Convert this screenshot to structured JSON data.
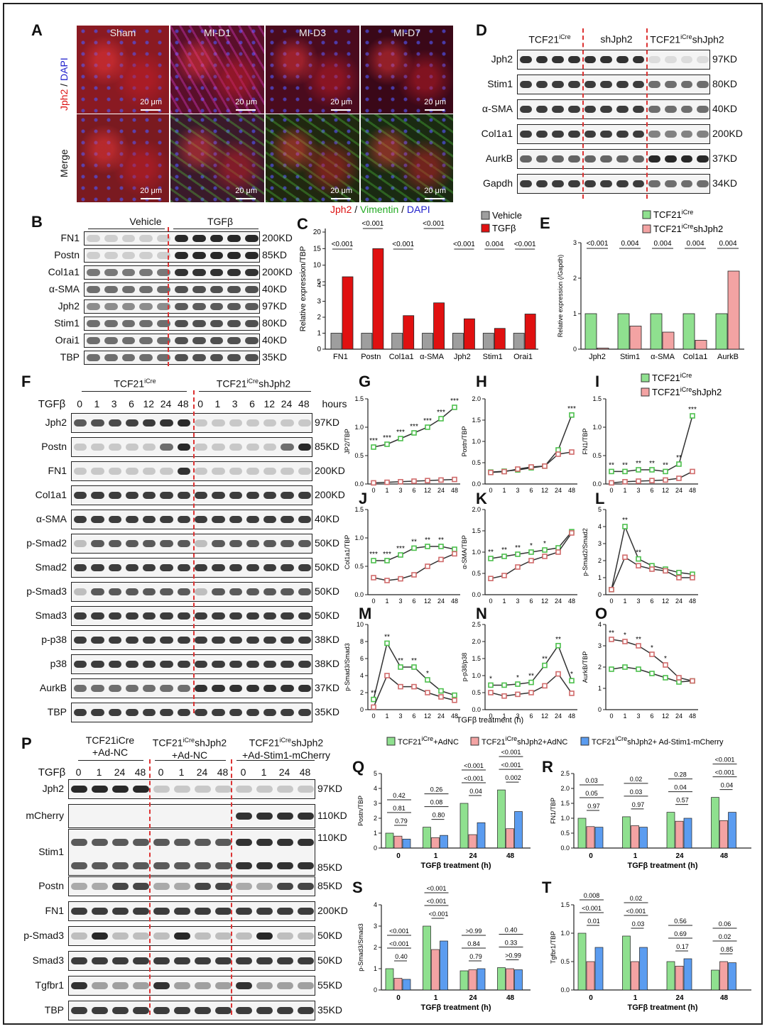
{
  "panels": {
    "A": "A",
    "B": "B",
    "C": "C",
    "D": "D",
    "E": "E",
    "F": "F",
    "G": "G",
    "H": "H",
    "I": "I",
    "J": "J",
    "K": "K",
    "L": "L",
    "M": "M",
    "N": "N",
    "O": "O",
    "P": "P",
    "Q": "Q",
    "R": "R",
    "S": "S",
    "T": "T"
  },
  "panelA": {
    "col_titles": [
      "Sham",
      "MI-D1",
      "MI-D3",
      "MI-D7"
    ],
    "scale": "20 μm",
    "row1_label_red": "Jph2",
    "row1_label_sep": " / ",
    "row1_label_blue": "DAPI",
    "row2_label": "Merge",
    "legend_red": "Jph2",
    "legend_green": "Vimentin",
    "legend_blue": "DAPI",
    "legend_sep": " / "
  },
  "panelB": {
    "group_left": "Vehicle",
    "group_right": "TGFβ",
    "rows": [
      {
        "name": "FN1",
        "kd": "200KD"
      },
      {
        "name": "Postn",
        "kd": "85KD"
      },
      {
        "name": "Col1a1",
        "kd": "200KD"
      },
      {
        "name": "α-SMA",
        "kd": "40KD"
      },
      {
        "name": "Jph2",
        "kd": "97KD"
      },
      {
        "name": "Stim1",
        "kd": "80KD"
      },
      {
        "name": "Orai1",
        "kd": "40KD"
      },
      {
        "name": "TBP",
        "kd": "35KD"
      }
    ]
  },
  "panelD": {
    "groups": [
      "TCF21",
      "shJph2",
      "TCF21"
    ],
    "sups": [
      "iCre",
      "",
      "iCre"
    ],
    "tail": [
      "",
      "",
      "shJph2"
    ],
    "rows": [
      {
        "name": "Jph2",
        "kd": "97KD"
      },
      {
        "name": "Stim1",
        "kd": "80KD"
      },
      {
        "name": "α-SMA",
        "kd": "40KD"
      },
      {
        "name": "Col1a1",
        "kd": "200KD"
      },
      {
        "name": "AurkB",
        "kd": "37KD"
      },
      {
        "name": "Gapdh",
        "kd": "34KD"
      }
    ]
  },
  "panelF": {
    "group_left": "TCF21",
    "group_left_sup": "iCre",
    "group_right": "TCF21",
    "group_right_sup": "iCre",
    "group_right_tail": "shJph2",
    "tgfb_label": "TGFβ",
    "times": [
      "0",
      "1",
      "3",
      "6",
      "12",
      "24",
      "48"
    ],
    "hours": "hours",
    "rows": [
      {
        "name": "Jph2",
        "kd": "97KD"
      },
      {
        "name": "Postn",
        "kd": "85KD"
      },
      {
        "name": "FN1",
        "kd": "200KD"
      },
      {
        "name": "Col1a1",
        "kd": "200KD"
      },
      {
        "name": "α-SMA",
        "kd": "40KD"
      },
      {
        "name": "p-Smad2",
        "kd": "50KD"
      },
      {
        "name": "Smad2",
        "kd": "50KD"
      },
      {
        "name": "p-Smad3",
        "kd": "50KD"
      },
      {
        "name": "Smad3",
        "kd": "50KD"
      },
      {
        "name": "p-p38",
        "kd": "38KD"
      },
      {
        "name": "p38",
        "kd": "38KD"
      },
      {
        "name": "AurkB",
        "kd": "37KD"
      },
      {
        "name": "TBP",
        "kd": "35KD"
      }
    ]
  },
  "panelP": {
    "group1_l1": "TCF21iCre",
    "group1_l2": "+Ad-NC",
    "group2_l1": "TCF21",
    "group2_sup": "iCre",
    "group2_tail": "shJph2",
    "group2_l2": "+Ad-NC",
    "group3_l1": "TCF21",
    "group3_sup": "iCre",
    "group3_tail": "shJph2",
    "group3_l2": "+Ad-Stim1-mCherry",
    "tgfb_label": "TGFβ",
    "times": [
      "0",
      "1",
      "24",
      "48",
      "0",
      "1",
      "24",
      "48",
      "0",
      "1",
      "24",
      "48"
    ],
    "rows": [
      {
        "name": "Jph2",
        "kd": "97KD"
      },
      {
        "name": "mCherry",
        "kd": "110KD"
      },
      {
        "name": "Stim1",
        "kd": "110KD",
        "kd2": "85KD"
      },
      {
        "name": "Postn",
        "kd": "85KD"
      },
      {
        "name": "FN1",
        "kd": "200KD"
      },
      {
        "name": "p-Smad3",
        "kd": "50KD"
      },
      {
        "name": "Smad3",
        "kd": "50KD"
      },
      {
        "name": "Tgfbr1",
        "kd": "55KD"
      },
      {
        "name": "TBP",
        "kd": "35KD"
      }
    ]
  },
  "chart_data": [
    {
      "id": "C",
      "type": "bar",
      "ylabel": "Relative expression/TBP",
      "categories": [
        "FN1",
        "Postn",
        "Col1a1",
        "α-SMA",
        "Jph2",
        "Stim1",
        "Orai1"
      ],
      "series": [
        {
          "name": "Vehicle",
          "color": "#9e9e9e",
          "values": [
            1.0,
            1.0,
            1.0,
            1.0,
            1.0,
            1.0,
            1.0
          ]
        },
        {
          "name": "TGFβ",
          "color": "#e01010",
          "values": [
            6.5,
            15.0,
            2.1,
            2.9,
            1.9,
            1.3,
            2.2
          ]
        }
      ],
      "pvalues": [
        "<0.001",
        "<0.001",
        "<0.001",
        "<0.001",
        "<0.001",
        "0.004",
        "<0.001"
      ],
      "yticks": [
        "0",
        "1",
        "2",
        "3",
        "4",
        "5",
        "10",
        "15",
        "20"
      ]
    },
    {
      "id": "E",
      "type": "bar",
      "ylabel": "Relative expression (/Gapdh)",
      "categories": [
        "Jph2",
        "Stim1",
        "α-SMA",
        "Col1a1",
        "AurkB"
      ],
      "series": [
        {
          "name": "TCF21iCre",
          "color": "#8fe08f",
          "values": [
            1.0,
            1.0,
            1.0,
            1.0,
            1.0
          ]
        },
        {
          "name": "TCF21iCreshJph2",
          "color": "#f3a3a3",
          "values": [
            0.03,
            0.65,
            0.48,
            0.25,
            2.2
          ]
        }
      ],
      "pvalues": [
        "<0.001",
        "0.004",
        "0.004",
        "0.004",
        "0.004"
      ],
      "ylim": [
        0,
        3
      ],
      "yticks": [
        "0",
        "1",
        "2",
        "3"
      ]
    },
    {
      "id": "G",
      "type": "line",
      "ylabel": "JP2/TBP",
      "x": [
        "0",
        "1",
        "3",
        "6",
        "12",
        "24",
        "48"
      ],
      "ylim": [
        0,
        1.5
      ],
      "yticks": [
        "0.0",
        "0.5",
        "1.0",
        "1.5"
      ],
      "series": [
        {
          "name": "TCF21iCre",
          "values": [
            0.65,
            0.7,
            0.8,
            0.9,
            1.0,
            1.15,
            1.35
          ]
        },
        {
          "name": "TCF21iCreshJph2",
          "values": [
            0.02,
            0.03,
            0.04,
            0.05,
            0.06,
            0.07,
            0.08
          ]
        }
      ],
      "marks": [
        "***",
        "***",
        "***",
        "***",
        "***",
        "***",
        "***"
      ]
    },
    {
      "id": "H",
      "type": "line",
      "ylabel": "Postn/TBP",
      "x": [
        "0",
        "1",
        "3",
        "6",
        "12",
        "24",
        "48"
      ],
      "ylim": [
        0,
        2.0
      ],
      "yticks": [
        "0.0",
        "0.5",
        "1.0",
        "1.5",
        "2.0"
      ],
      "series": [
        {
          "name": "TCF21iCre",
          "values": [
            0.28,
            0.3,
            0.33,
            0.38,
            0.42,
            0.8,
            1.62
          ]
        },
        {
          "name": "TCF21iCreshJph2",
          "values": [
            0.27,
            0.29,
            0.35,
            0.4,
            0.42,
            0.7,
            0.75
          ]
        }
      ],
      "marks": [
        "",
        "",
        "",
        "",
        "",
        "",
        "***"
      ]
    },
    {
      "id": "I",
      "type": "line",
      "ylabel": "FN1/TBP",
      "x": [
        "0",
        "1",
        "3",
        "6",
        "12",
        "24",
        "48"
      ],
      "ylim": [
        0,
        1.5
      ],
      "yticks": [
        "0.0",
        "0.5",
        "1.0",
        "1.5"
      ],
      "series": [
        {
          "name": "TCF21iCre",
          "values": [
            0.22,
            0.22,
            0.25,
            0.25,
            0.22,
            0.35,
            1.2
          ]
        },
        {
          "name": "TCF21iCreshJph2",
          "values": [
            0.02,
            0.04,
            0.05,
            0.06,
            0.07,
            0.1,
            0.22
          ]
        }
      ],
      "marks": [
        "**",
        "**",
        "**",
        "**",
        "**",
        "**",
        "***"
      ]
    },
    {
      "id": "J",
      "type": "line",
      "ylabel": "Col1a1/TBP",
      "x": [
        "0",
        "1",
        "3",
        "6",
        "12",
        "24",
        "48"
      ],
      "ylim": [
        0,
        1.5
      ],
      "yticks": [
        "0.0",
        "0.5",
        "1.0",
        "1.5"
      ],
      "series": [
        {
          "name": "TCF21iCre",
          "values": [
            0.6,
            0.6,
            0.7,
            0.82,
            0.85,
            0.85,
            0.8
          ]
        },
        {
          "name": "TCF21iCreshJph2",
          "values": [
            0.3,
            0.25,
            0.28,
            0.35,
            0.5,
            0.62,
            0.72
          ]
        }
      ],
      "marks": [
        "***",
        "***",
        "***",
        "**",
        "**",
        "**",
        ""
      ]
    },
    {
      "id": "K",
      "type": "line",
      "ylabel": "α-SMA/TBP",
      "x": [
        "0",
        "1",
        "3",
        "6",
        "12",
        "24",
        "48"
      ],
      "ylim": [
        0,
        2.0
      ],
      "yticks": [
        "0.0",
        "0.5",
        "1.0",
        "1.5",
        "2.0"
      ],
      "series": [
        {
          "name": "TCF21iCre",
          "values": [
            0.85,
            0.9,
            0.95,
            1.0,
            1.05,
            1.1,
            1.48
          ]
        },
        {
          "name": "TCF21iCreshJph2",
          "values": [
            0.38,
            0.45,
            0.65,
            0.8,
            0.9,
            1.0,
            1.45
          ]
        }
      ],
      "marks": [
        "**",
        "**",
        "**",
        "*",
        "*",
        "",
        ""
      ]
    },
    {
      "id": "L",
      "type": "line",
      "ylabel": "p-Smad2/Smad2",
      "x": [
        "0",
        "1",
        "3",
        "6",
        "12",
        "24",
        "48"
      ],
      "ylim": [
        0,
        5
      ],
      "yticks": [
        "0",
        "1",
        "2",
        "3",
        "4",
        "5"
      ],
      "series": [
        {
          "name": "TCF21iCre",
          "values": [
            0.3,
            4.0,
            2.1,
            1.7,
            1.5,
            1.3,
            1.2
          ]
        },
        {
          "name": "TCF21iCreshJph2",
          "values": [
            0.3,
            2.2,
            1.7,
            1.5,
            1.4,
            1.0,
            1.0
          ]
        }
      ],
      "marks": [
        "",
        "**",
        "**",
        "",
        "",
        "",
        ""
      ]
    },
    {
      "id": "M",
      "type": "line",
      "ylabel": "p-Smad3/Smad3",
      "x": [
        "0",
        "1",
        "3",
        "6",
        "12",
        "24",
        "48"
      ],
      "ylim": [
        0,
        10
      ],
      "yticks": [
        "0",
        "2",
        "4",
        "6",
        "8",
        "10"
      ],
      "series": [
        {
          "name": "TCF21iCre",
          "values": [
            1.2,
            7.8,
            5.0,
            5.0,
            3.5,
            2.2,
            1.7
          ]
        },
        {
          "name": "TCF21iCreshJph2",
          "values": [
            0.3,
            4.0,
            2.7,
            2.7,
            2.0,
            1.5,
            1.1
          ]
        }
      ],
      "marks": [
        "**",
        "**",
        "**",
        "**",
        "*",
        "",
        ""
      ]
    },
    {
      "id": "N",
      "type": "line",
      "ylabel": "p-p38/p38",
      "x": [
        "0",
        "1",
        "3",
        "6",
        "12",
        "24",
        "48"
      ],
      "ylim": [
        0,
        2.5
      ],
      "yticks": [
        "0.0",
        "0.5",
        "1.0",
        "1.5",
        "2.0",
        "2.5"
      ],
      "series": [
        {
          "name": "TCF21iCre",
          "values": [
            0.72,
            0.72,
            0.75,
            0.8,
            1.3,
            1.88,
            0.85
          ]
        },
        {
          "name": "TCF21iCreshJph2",
          "values": [
            0.5,
            0.4,
            0.45,
            0.5,
            0.7,
            1.05,
            0.48
          ]
        }
      ],
      "marks": [
        "*",
        "",
        "*",
        "**",
        "**",
        "**",
        "*"
      ]
    },
    {
      "id": "O",
      "type": "line",
      "ylabel": "AurkB/TBP",
      "x": [
        "0",
        "1",
        "3",
        "6",
        "12",
        "24",
        "48"
      ],
      "ylim": [
        0,
        4
      ],
      "yticks": [
        "0",
        "1",
        "2",
        "3",
        "4"
      ],
      "series": [
        {
          "name": "TCF21iCre",
          "values": [
            1.9,
            2.0,
            1.9,
            1.7,
            1.5,
            1.3,
            1.35
          ]
        },
        {
          "name": "TCF21iCreshJph2",
          "values": [
            3.3,
            3.2,
            3.0,
            2.6,
            2.1,
            1.5,
            1.35
          ]
        }
      ],
      "marks": [
        "**",
        "*",
        "**",
        "*",
        "*",
        "",
        ""
      ]
    },
    {
      "id": "Q",
      "type": "bar",
      "ylabel": "Postn/TBP",
      "categories": [
        "0",
        "1",
        "24",
        "48"
      ],
      "ylim": [
        0,
        5
      ],
      "yticks": [
        "0",
        "1",
        "2",
        "3",
        "4",
        "5"
      ],
      "series": [
        {
          "name": "TCF21iCre+AdNC",
          "values": [
            1.0,
            1.4,
            3.0,
            3.9
          ]
        },
        {
          "name": "TCF21iCreshJph2+AdNC",
          "values": [
            0.8,
            0.7,
            0.9,
            1.3
          ]
        },
        {
          "name": "TCF21iCreshJph2+ Ad-Stim1-mCherry",
          "values": [
            0.6,
            0.85,
            1.7,
            2.45
          ]
        }
      ],
      "pvalues": [
        [
          "0.42",
          "0.81",
          "0.79"
        ],
        [
          "0.26",
          "0.08",
          "0.80"
        ],
        [
          "<0.001",
          "<0.001",
          "0.04"
        ],
        [
          "<0.001",
          "<0.001",
          "0.002"
        ]
      ]
    },
    {
      "id": "R",
      "type": "bar",
      "ylabel": "FN1/TBP",
      "categories": [
        "0",
        "1",
        "24",
        "48"
      ],
      "ylim": [
        0,
        2.5
      ],
      "yticks": [
        "0.0",
        "0.5",
        "1.0",
        "1.5",
        "2.0",
        "2.5"
      ],
      "series": [
        {
          "name": "TCF21iCre+AdNC",
          "values": [
            1.0,
            1.05,
            1.2,
            1.7
          ]
        },
        {
          "name": "TCF21iCreshJph2+AdNC",
          "values": [
            0.72,
            0.75,
            0.9,
            0.92
          ]
        },
        {
          "name": "TCF21iCreshJph2+ Ad-Stim1-mCherry",
          "values": [
            0.7,
            0.7,
            1.0,
            1.2
          ]
        }
      ],
      "pvalues": [
        [
          "0.03",
          "0.05",
          "0.97"
        ],
        [
          "0.02",
          "0.03",
          "0.97"
        ],
        [
          "0.28",
          "0.04",
          "0.57"
        ],
        [
          "<0.001",
          "<0.001",
          "0.04"
        ]
      ]
    },
    {
      "id": "S",
      "type": "bar",
      "ylabel": "p-Smad3/Smad3",
      "categories": [
        "0",
        "1",
        "24",
        "48"
      ],
      "ylim": [
        0,
        4
      ],
      "yticks": [
        "0",
        "1",
        "2",
        "3",
        "4"
      ],
      "series": [
        {
          "name": "TCF21iCre+AdNC",
          "values": [
            1.0,
            3.0,
            0.9,
            1.05
          ]
        },
        {
          "name": "TCF21iCreshJph2+AdNC",
          "values": [
            0.55,
            1.9,
            0.95,
            1.0
          ]
        },
        {
          "name": "TCF21iCreshJph2+ Ad-Stim1-mCherry",
          "values": [
            0.5,
            2.3,
            1.0,
            0.95
          ]
        }
      ],
      "pvalues": [
        [
          "<0.001",
          "<0.001",
          "0.40"
        ],
        [
          "<0.001",
          "<0.001",
          "<0.001"
        ],
        [
          ">0.99",
          "0.84",
          "0.79"
        ],
        [
          "0.40",
          "0.33",
          ">0.99"
        ]
      ]
    },
    {
      "id": "T",
      "type": "bar",
      "ylabel": "Tgfbr1/TBP",
      "categories": [
        "0",
        "1",
        "24",
        "48"
      ],
      "ylim": [
        0,
        1.5
      ],
      "yticks": [
        "0.0",
        "0.5",
        "1.0",
        "1.5"
      ],
      "series": [
        {
          "name": "TCF21iCre+AdNC",
          "values": [
            1.0,
            0.95,
            0.5,
            0.35
          ]
        },
        {
          "name": "TCF21iCreshJph2+AdNC",
          "values": [
            0.5,
            0.5,
            0.42,
            0.5
          ]
        },
        {
          "name": "TCF21iCreshJph2+ Ad-Stim1-mCherry",
          "values": [
            0.75,
            0.75,
            0.55,
            0.48
          ]
        }
      ],
      "pvalues": [
        [
          "0.008",
          "<0.001",
          "0.01"
        ],
        [
          "0.02",
          "<0.001",
          "0.03"
        ],
        [
          "0.56",
          "0.69",
          "0.17"
        ],
        [
          "0.06",
          "0.02",
          "0.85"
        ]
      ]
    }
  ],
  "legends": {
    "C": [
      "Vehicle",
      "TGFβ"
    ],
    "E": [
      {
        "base": "TCF21",
        "sup": "iCre",
        "tail": ""
      },
      {
        "base": "TCF21",
        "sup": "iCre",
        "tail": "shJph2"
      }
    ],
    "GI": [
      {
        "base": "TCF21",
        "sup": "iCre",
        "tail": ""
      },
      {
        "base": "TCF21",
        "sup": "iCre",
        "tail": "shJph2"
      }
    ],
    "QT": [
      {
        "base": "TCF21",
        "sup": "iCre",
        "tail": "+AdNC"
      },
      {
        "base": "TCF21",
        "sup": "iCre",
        "tail": "shJph2+AdNC"
      },
      {
        "base": "TCF21",
        "sup": "iCre",
        "tail": "shJph2+ Ad-Stim1-mCherry"
      }
    ]
  },
  "xaxis_time": "TGFβ treatment (h)",
  "colors": {
    "green": "#8fe08f",
    "pink": "#f3a3a3",
    "blue": "#5b9cf0",
    "red": "#e01010",
    "grey": "#9e9e9e",
    "line_green": "#4cc04c",
    "line_pink": "#d06b6b"
  }
}
